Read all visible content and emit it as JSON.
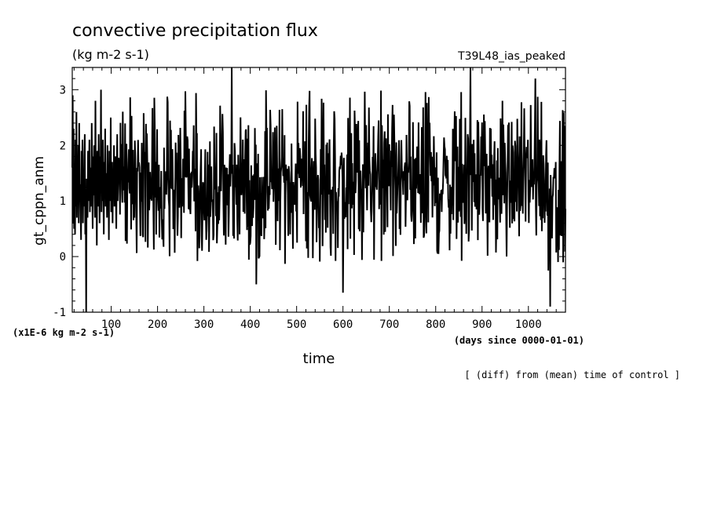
{
  "chart_data": {
    "type": "line",
    "title": "convective precipitation flux",
    "units": "(kg m-2 s-1)",
    "experiment": "T39L48_ias_peaked",
    "ylabel": "gt_cppn_anm",
    "y_scale_note": "(x1E-6 kg m-2 s-1)",
    "xlabel": "time",
    "x_units": "(days since 0000-01-01)",
    "footnote": "[ (diff) from (mean) time of control ]",
    "xlim": [
      16,
      1080
    ],
    "ylim": [
      -1,
      3.4
    ],
    "x_ticks": [
      100,
      200,
      300,
      400,
      500,
      600,
      700,
      800,
      900,
      1000
    ],
    "x_tick_labels": [
      "100",
      "200",
      "300",
      "400",
      "500",
      "600",
      "700",
      "800",
      "900",
      "1000"
    ],
    "y_ticks": [
      -1,
      0,
      1,
      2,
      3
    ],
    "y_tick_labels": [
      "-1",
      "0",
      "1",
      "2",
      "3"
    ],
    "series": [
      {
        "name": "gt_cppn_anm",
        "x_start": 16,
        "x_step": 1,
        "values": [
          1.6,
          2.9,
          0.6,
          2.3,
          0.5,
          1.5,
          0.4,
          2.1,
          0.9,
          2.6,
          0.7,
          1.4,
          1.0,
          2.0,
          0.6,
          2.4,
          1.1,
          1.3,
          0.8,
          0.3,
          1.9,
          1.2,
          2.1,
          0.6,
          1.3,
          0.9,
          1.8,
          2.2,
          0.4,
          1.1,
          -1.0,
          1.4,
          1.2,
          0.7,
          1.9,
          1.0,
          1.5,
          2.1,
          0.8,
          1.6,
          1.2,
          0.9,
          2.4,
          1.3,
          0.5,
          1.8,
          1.1,
          2.0,
          1.4,
          0.7,
          2.8,
          1.0,
          1.6,
          0.2,
          1.9,
          1.2,
          0.9,
          2.2,
          1.5,
          0.6,
          1.8,
          1.3,
          3.0,
          0.8,
          1.4,
          1.0,
          2.1,
          1.2,
          0.4,
          1.7,
          1.1,
          2.3,
          0.9,
          1.5,
          1.3,
          0.7,
          2.0,
          1.2,
          1.6,
          0.3,
          1.9,
          1.4,
          1.0,
          2.5,
          0.8,
          1.3,
          1.7,
          0.6,
          1.5,
          1.1,
          2.0,
          0.9,
          1.4,
          1.8,
          1.2,
          0.5,
          1.6,
          2.2,
          1.0,
          1.3
        ],
        "note": "dense daily series; remaining points generated by the drawing script with the same statistics"
      }
    ],
    "line_color": "#000000",
    "grid": false
  }
}
